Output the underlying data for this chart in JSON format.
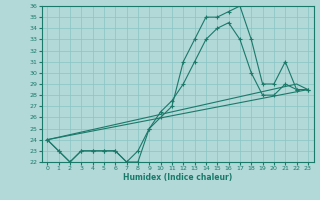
{
  "xlabel": "Humidex (Indice chaleur)",
  "bg_color": "#b2d8d8",
  "grid_color": "#89c4c4",
  "line_color": "#1a7a6a",
  "xlim": [
    -0.5,
    23.5
  ],
  "ylim": [
    22,
    36
  ],
  "yticks": [
    22,
    23,
    24,
    25,
    26,
    27,
    28,
    29,
    30,
    31,
    32,
    33,
    34,
    35,
    36
  ],
  "xticks": [
    0,
    1,
    2,
    3,
    4,
    5,
    6,
    7,
    8,
    9,
    10,
    11,
    12,
    13,
    14,
    15,
    16,
    17,
    18,
    19,
    20,
    21,
    22,
    23
  ],
  "line1_x": [
    0,
    1,
    2,
    3,
    4,
    5,
    6,
    7,
    8,
    9,
    10,
    11,
    12,
    13,
    14,
    15,
    16,
    17,
    18,
    19,
    20,
    21,
    22,
    23
  ],
  "line1_y": [
    24,
    23,
    22,
    23,
    23,
    23,
    23,
    22,
    22,
    25,
    26,
    27,
    31,
    33,
    35,
    35,
    35.5,
    36,
    33,
    29,
    29,
    31,
    28.5,
    28.5
  ],
  "line2_x": [
    0,
    1,
    2,
    3,
    4,
    5,
    6,
    7,
    8,
    9,
    10,
    11,
    12,
    13,
    14,
    15,
    16,
    17,
    18,
    19,
    20,
    21,
    22,
    23
  ],
  "line2_y": [
    24,
    23,
    22,
    23,
    23,
    23,
    23,
    22,
    23,
    25,
    26.5,
    27.5,
    29,
    31,
    33,
    34,
    34.5,
    33,
    30,
    28,
    28,
    29,
    28.5,
    28.5
  ],
  "line3_x": [
    0,
    22,
    23
  ],
  "line3_y": [
    24,
    29,
    28.5
  ],
  "line4_x": [
    0,
    23
  ],
  "line4_y": [
    24,
    28.5
  ]
}
